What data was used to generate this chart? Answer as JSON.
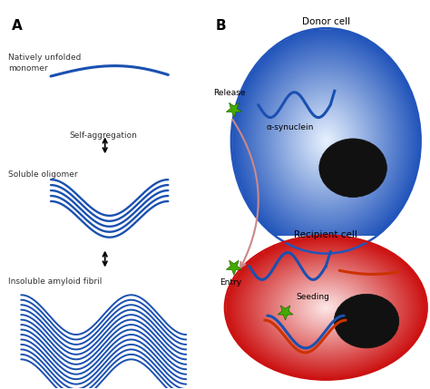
{
  "title_A": "A",
  "title_B": "B",
  "label_monomer": "Natively unfolded\nmonomer",
  "label_aggregation": "Self-aggregation",
  "label_oligomer": "Soluble oligomer",
  "label_fibril": "Insoluble amyloid fibril",
  "label_donor": "Donor cell",
  "label_recipient": "Recipient cell",
  "label_release": "Release",
  "label_entry": "Entry",
  "label_alpha": "α-synuclein",
  "label_seeding": "Seeding",
  "blue_dark": "#1a3f99",
  "blue_protein": "#1a50b0",
  "orange_line": "#cc3300",
  "green_star": "#44aa00",
  "bg": "#ffffff",
  "donor_face": "#b8d4f0",
  "donor_edge": "#1a50b0",
  "recip_face": "#f0b8b8",
  "recip_edge": "#cc1111",
  "nucleus_color": "#111111",
  "arrow_color": "#cc8888",
  "text_color": "#333333"
}
